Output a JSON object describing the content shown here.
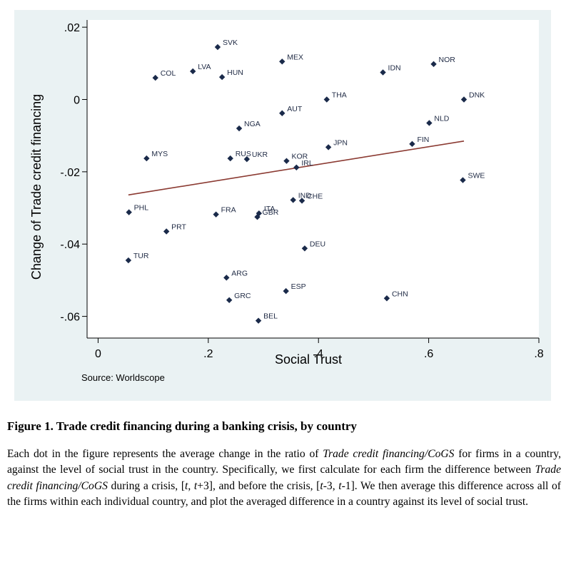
{
  "chart_data": {
    "type": "scatter",
    "xlabel": "Social Trust",
    "ylabel": "Change of Trade credit financing",
    "xlim": [
      -0.02,
      0.8
    ],
    "ylim": [
      -0.066,
      0.022
    ],
    "xticks": [
      0,
      0.2,
      0.4,
      0.6,
      0.8
    ],
    "xtick_labels": [
      "0",
      ".2",
      ".4",
      ".6",
      ".8"
    ],
    "yticks": [
      0.02,
      0,
      -0.02,
      -0.04,
      -0.06
    ],
    "ytick_labels": [
      ".02",
      "0",
      "-.02",
      "-.04",
      "-.06"
    ],
    "grid": false,
    "note": "Source: Worldscope",
    "marker_color": "#1a2a4a",
    "fit_color": "#8b3a32",
    "points": [
      {
        "label": "SVK",
        "x": 0.217,
        "y": 0.0145
      },
      {
        "label": "MEX",
        "x": 0.334,
        "y": 0.0105
      },
      {
        "label": "NOR",
        "x": 0.609,
        "y": 0.0098
      },
      {
        "label": "LVA",
        "x": 0.172,
        "y": 0.0078
      },
      {
        "label": "IDN",
        "x": 0.517,
        "y": 0.0075
      },
      {
        "label": "COL",
        "x": 0.104,
        "y": 0.006
      },
      {
        "label": "HUN",
        "x": 0.225,
        "y": 0.0062
      },
      {
        "label": "THA",
        "x": 0.415,
        "y": 0.0
      },
      {
        "label": "DNK",
        "x": 0.664,
        "y": 0.0
      },
      {
        "label": "AUT",
        "x": 0.334,
        "y": -0.0038
      },
      {
        "label": "NLD",
        "x": 0.601,
        "y": -0.0065
      },
      {
        "label": "NGA",
        "x": 0.256,
        "y": -0.008
      },
      {
        "label": "FIN",
        "x": 0.57,
        "y": -0.0123
      },
      {
        "label": "JPN",
        "x": 0.418,
        "y": -0.0132
      },
      {
        "label": "MYS",
        "x": 0.088,
        "y": -0.0163
      },
      {
        "label": "RUS",
        "x": 0.24,
        "y": -0.0163
      },
      {
        "label": "UKR",
        "x": 0.27,
        "y": -0.0165
      },
      {
        "label": "KOR",
        "x": 0.342,
        "y": -0.017
      },
      {
        "label": "IRL",
        "x": 0.36,
        "y": -0.0188
      },
      {
        "label": "SWE",
        "x": 0.662,
        "y": -0.0223
      },
      {
        "label": "IND",
        "x": 0.354,
        "y": -0.0278
      },
      {
        "label": "CHE",
        "x": 0.37,
        "y": -0.028
      },
      {
        "label": "PHL",
        "x": 0.056,
        "y": -0.0312
      },
      {
        "label": "FRA",
        "x": 0.214,
        "y": -0.0318
      },
      {
        "label": "ITA",
        "x": 0.292,
        "y": -0.0315
      },
      {
        "label": "GBR",
        "x": 0.289,
        "y": -0.0325
      },
      {
        "label": "PRT",
        "x": 0.124,
        "y": -0.0365
      },
      {
        "label": "DEU",
        "x": 0.375,
        "y": -0.0412
      },
      {
        "label": "TUR",
        "x": 0.055,
        "y": -0.0445
      },
      {
        "label": "ARG",
        "x": 0.233,
        "y": -0.0493
      },
      {
        "label": "ESP",
        "x": 0.341,
        "y": -0.053
      },
      {
        "label": "GRC",
        "x": 0.238,
        "y": -0.0555
      },
      {
        "label": "CHN",
        "x": 0.524,
        "y": -0.055
      },
      {
        "label": "BEL",
        "x": 0.291,
        "y": -0.0612
      }
    ],
    "fit_line": {
      "x": [
        0.055,
        0.664
      ],
      "y": [
        -0.0264,
        -0.0115
      ]
    }
  },
  "caption": {
    "title": "Figure 1. Trade credit financing during a banking crisis, by country",
    "body": [
      {
        "t": "Each dot in the figure represents the average change in the ratio of "
      },
      {
        "t": "Trade credit financing/CoGS",
        "i": true
      },
      {
        "t": " for firms in a country, against the level of social trust in the country. Specifically, we first calculate for each firm the difference between "
      },
      {
        "t": "Trade credit financing/CoGS",
        "i": true
      },
      {
        "t": " during a crisis, ["
      },
      {
        "t": "t",
        "i": true
      },
      {
        "t": ", "
      },
      {
        "t": "t",
        "i": true
      },
      {
        "t": "+3], and before the crisis, ["
      },
      {
        "t": "t",
        "i": true
      },
      {
        "t": "-3, "
      },
      {
        "t": "t",
        "i": true
      },
      {
        "t": "-1]. We then average this difference across all of the firms within each individual country, and plot the averaged difference in a country against its level of social trust."
      }
    ]
  }
}
